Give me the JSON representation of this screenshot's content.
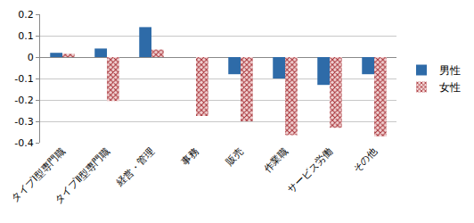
{
  "chart_data": {
    "type": "bar",
    "categories": [
      "タイプⅠ型専門職",
      "タイプⅡ型専門職",
      "経営・管理",
      "事務",
      "販売",
      "作業職",
      "サービス労働",
      "その他"
    ],
    "series": [
      {
        "name": "男性",
        "color": "#2E6BA8",
        "values": [
          0.02,
          0.04,
          0.14,
          0,
          -0.08,
          -0.1,
          -0.13,
          -0.08
        ]
      },
      {
        "name": "女性",
        "color": "#A8343A",
        "marker": "hatch",
        "values": [
          0.015,
          -0.205,
          0.035,
          -0.275,
          -0.3,
          -0.365,
          -0.33,
          -0.37
        ]
      }
    ],
    "ylim": [
      -0.4,
      0.2
    ],
    "yticks": [
      -0.4,
      -0.3,
      -0.2,
      -0.1,
      0,
      0.1,
      0.2
    ],
    "grid": true,
    "legend": "right"
  }
}
